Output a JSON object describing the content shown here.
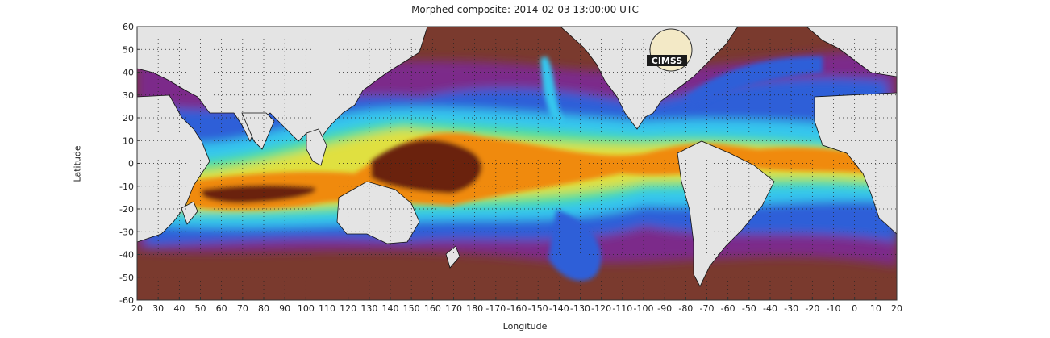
{
  "title": "Morphed composite: 2014-02-03 13:00:00 UTC",
  "xlabel": "Longitude",
  "ylabel": "Latitude",
  "map": {
    "type": "global-precipitable-water-composite",
    "lon_ticks": [
      "20",
      "30",
      "40",
      "50",
      "60",
      "70",
      "80",
      "90",
      "100",
      "110",
      "120",
      "130",
      "140",
      "150",
      "160",
      "170",
      "180",
      "-170",
      "-160",
      "-150",
      "-140",
      "-130",
      "-120",
      "-110",
      "-100",
      "-90",
      "-80",
      "-70",
      "-60",
      "-50",
      "-40",
      "-30",
      "-20",
      "-10",
      "0",
      "10",
      "20"
    ],
    "lat_ticks": [
      "60",
      "50",
      "40",
      "30",
      "20",
      "10",
      "0",
      "-10",
      "-20",
      "-30",
      "-40",
      "-50",
      "-60"
    ],
    "lon_range": [
      20,
      380
    ],
    "lat_range": [
      -60,
      60
    ],
    "grid": true,
    "logo_text": "CIMSS",
    "colors": {
      "land": "#e4e4e4",
      "dry": "#7a3a2e",
      "mid_dry": "#7c2a8a",
      "moderate": "#2e5fd8",
      "moist": "#34c6ee",
      "wet": "#4fe08a",
      "very_wet": "#e0e040",
      "high": "#f08a10",
      "max": "#6b2410"
    }
  }
}
